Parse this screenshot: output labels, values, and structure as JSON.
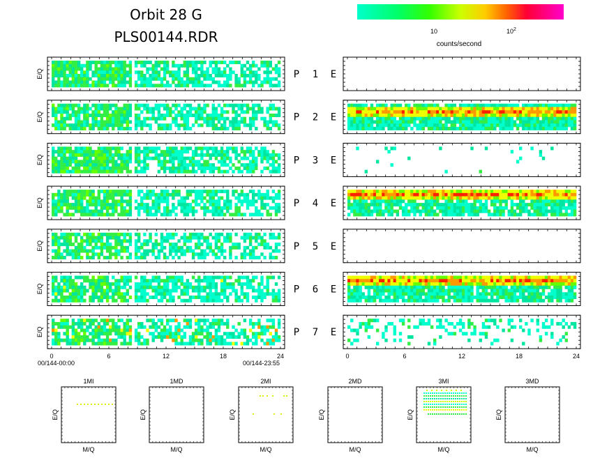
{
  "title_line1": "Orbit 28 G",
  "title_line2": "PLS00144.RDR",
  "colorbar": {
    "label": "counts/second",
    "tick_10": "10",
    "tick_100_base": "10",
    "tick_100_exp": "2",
    "colors": [
      "#00ffcc",
      "#00ff66",
      "#33ff00",
      "#ccff00",
      "#ffcc00",
      "#ff6600",
      "#ff0033",
      "#ff00cc"
    ]
  },
  "panel_ylabel": "E/Q",
  "panel_labels": [
    {
      "p": "P",
      "n": "1",
      "e": "E"
    },
    {
      "p": "P",
      "n": "2",
      "e": "E"
    },
    {
      "p": "P",
      "n": "3",
      "e": "E"
    },
    {
      "p": "P",
      "n": "4",
      "e": "E"
    },
    {
      "p": "P",
      "n": "5",
      "e": "E"
    },
    {
      "p": "P",
      "n": "6",
      "e": "E"
    },
    {
      "p": "P",
      "n": "7",
      "e": "E"
    }
  ],
  "time_start": "00/144-00:00",
  "time_end": "00/144-23:55",
  "mini_labels": [
    "1MI",
    "1MD",
    "2MI",
    "2MD",
    "3MI",
    "3MD"
  ],
  "mini_xlabel": "M/Q",
  "mini_ylabel": "E/Q",
  "chart_data": {
    "type": "heatmap",
    "x_ticks": [
      0,
      6,
      12,
      18,
      24
    ],
    "xlim": [
      0,
      24
    ],
    "colorscale": "log",
    "color_ticks": [
      "10",
      "10^2"
    ],
    "P_panels": [
      {
        "label": "P 1",
        "density": 0.88,
        "level": "low",
        "gap_at": 8.3
      },
      {
        "label": "P 2",
        "density": 0.85,
        "level": "low",
        "gap_at": 8.3
      },
      {
        "label": "P 3",
        "density": 0.9,
        "level": "low",
        "gap_at": 8.3
      },
      {
        "label": "P 4",
        "density": 0.85,
        "level": "low",
        "gap_at": 8.3
      },
      {
        "label": "P 5",
        "density": 0.75,
        "level": "low",
        "gap_at": 8.3
      },
      {
        "label": "P 6",
        "density": 0.85,
        "level": "low-mid",
        "gap_at": 8.3
      },
      {
        "label": "P 7",
        "density": 0.78,
        "level": "mid",
        "gap_at": 8.3
      }
    ],
    "E_panels": [
      {
        "label": "E 1",
        "density": 0.0,
        "band": false
      },
      {
        "label": "E 2",
        "density": 0.92,
        "band": true
      },
      {
        "label": "E 3",
        "density": 0.06,
        "band": false
      },
      {
        "label": "E 4",
        "density": 0.85,
        "band": true
      },
      {
        "label": "E 5",
        "density": 0.0,
        "band": false
      },
      {
        "label": "E 6",
        "density": 0.85,
        "band": true
      },
      {
        "label": "E 7",
        "density": 0.4,
        "band": false
      }
    ],
    "mini_panels": [
      {
        "name": "1MI",
        "points": "single row of yellow points"
      },
      {
        "name": "1MD",
        "points": "none"
      },
      {
        "name": "2MI",
        "points": "sparse yellow points"
      },
      {
        "name": "2MD",
        "points": "none"
      },
      {
        "name": "3MI",
        "points": "many rows of colored points"
      },
      {
        "name": "3MD",
        "points": "none"
      }
    ]
  }
}
